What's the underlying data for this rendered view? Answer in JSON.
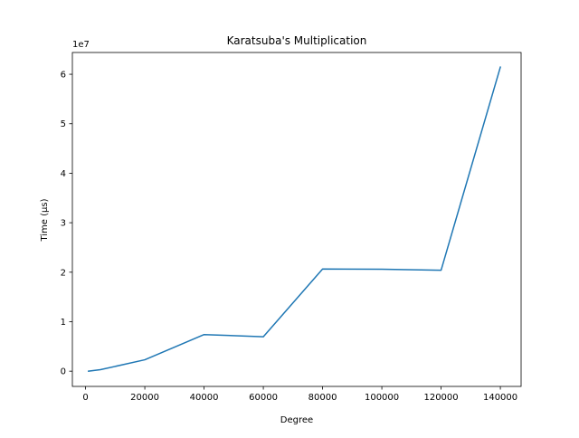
{
  "chart_data": {
    "type": "line",
    "title": "Karatsuba's Multiplication",
    "xlabel": "Degree",
    "ylabel": "Time (μs)",
    "y_offset_label": "1e7",
    "xlim": [
      -4450,
      147000
    ],
    "ylim": [
      -3080000,
      64400000
    ],
    "x_ticks": [
      0,
      20000,
      40000,
      60000,
      80000,
      100000,
      120000,
      140000
    ],
    "x_tick_labels": [
      "0",
      "20000",
      "40000",
      "60000",
      "80000",
      "100000",
      "120000",
      "140000"
    ],
    "y_ticks": [
      0,
      10000000,
      20000000,
      30000000,
      40000000,
      50000000,
      60000000
    ],
    "y_tick_labels": [
      "0",
      "1",
      "2",
      "3",
      "4",
      "5",
      "6"
    ],
    "grid": false,
    "series": [
      {
        "color": "#1f77b4",
        "x": [
          1000,
          5000,
          20000,
          40000,
          60000,
          80000,
          100000,
          120000,
          140000
        ],
        "y": [
          0,
          300000,
          2300000,
          7400000,
          6950000,
          20650000,
          20600000,
          20400000,
          61450000
        ]
      }
    ]
  }
}
